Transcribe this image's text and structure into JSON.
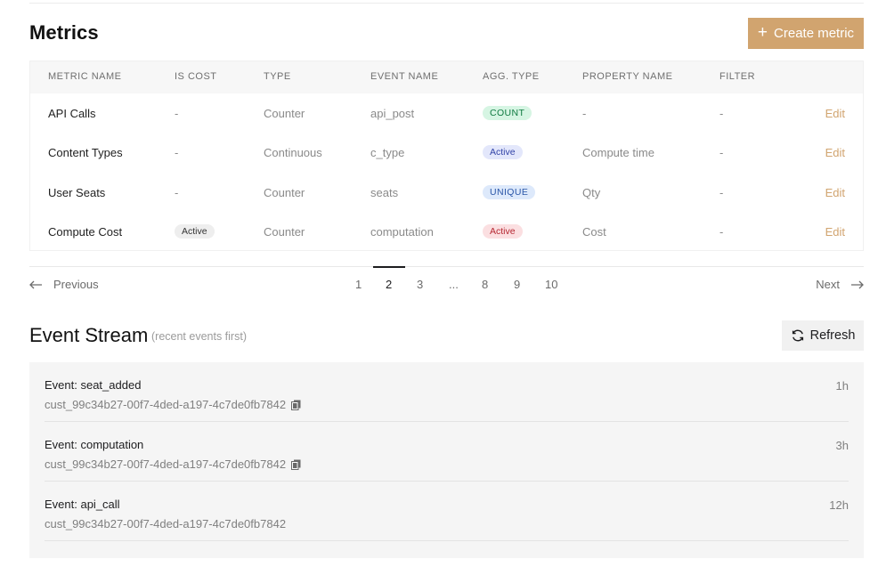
{
  "metrics": {
    "title": "Metrics",
    "create_label": "Create metric",
    "columns": [
      "METRIC NAME",
      "IS COST",
      "TYPE",
      "EVENT NAME",
      "AGG. TYPE",
      "PROPERTY NAME",
      "FILTER"
    ],
    "rows": [
      {
        "name": "API Calls",
        "is_cost": "-",
        "type": "Counter",
        "event": "api_post",
        "agg": "COUNT",
        "property": "-",
        "filter": "-",
        "edit": "Edit"
      },
      {
        "name": "Content Types",
        "is_cost": "-",
        "type": "Continuous",
        "event": "c_type",
        "agg": "Active",
        "property": "Compute time",
        "filter": "-",
        "edit": "Edit"
      },
      {
        "name": "User Seats",
        "is_cost": "-",
        "type": "Counter",
        "event": "seats",
        "agg": "UNIQUE",
        "property": "Qty",
        "filter": "-",
        "edit": "Edit"
      },
      {
        "name": "Compute Cost",
        "is_cost": "Active",
        "type": "Counter",
        "event": "computation",
        "agg": "Active",
        "property": "Cost",
        "filter": "-",
        "edit": "Edit"
      }
    ]
  },
  "pagination": {
    "previous": "Previous",
    "next": "Next",
    "pages": [
      "1",
      "2",
      "3",
      "...",
      "8",
      "9",
      "10"
    ],
    "current": "2"
  },
  "stream": {
    "title": "Event Stream",
    "subtitle": "(recent events first)",
    "refresh_label": "Refresh",
    "events": [
      {
        "title": "Event: seat_added",
        "customer": "cust_99c34b27-00f7-4ded-a197-4c7de0fb7842",
        "time": "1h"
      },
      {
        "title": "Event: computation",
        "customer": "cust_99c34b27-00f7-4ded-a197-4c7de0fb7842",
        "time": "3h"
      },
      {
        "title": "Event: api_call",
        "customer": "cust_99c34b27-00f7-4ded-a197-4c7de0fb7842",
        "time": "12h"
      }
    ]
  },
  "colors": {
    "accent": "#d1a46f",
    "count_badge": "#d6f5e3",
    "active_badge_blue": "#e3e7fb",
    "unique_badge": "#dde9fb",
    "active_badge_red": "#fbdfe1"
  }
}
